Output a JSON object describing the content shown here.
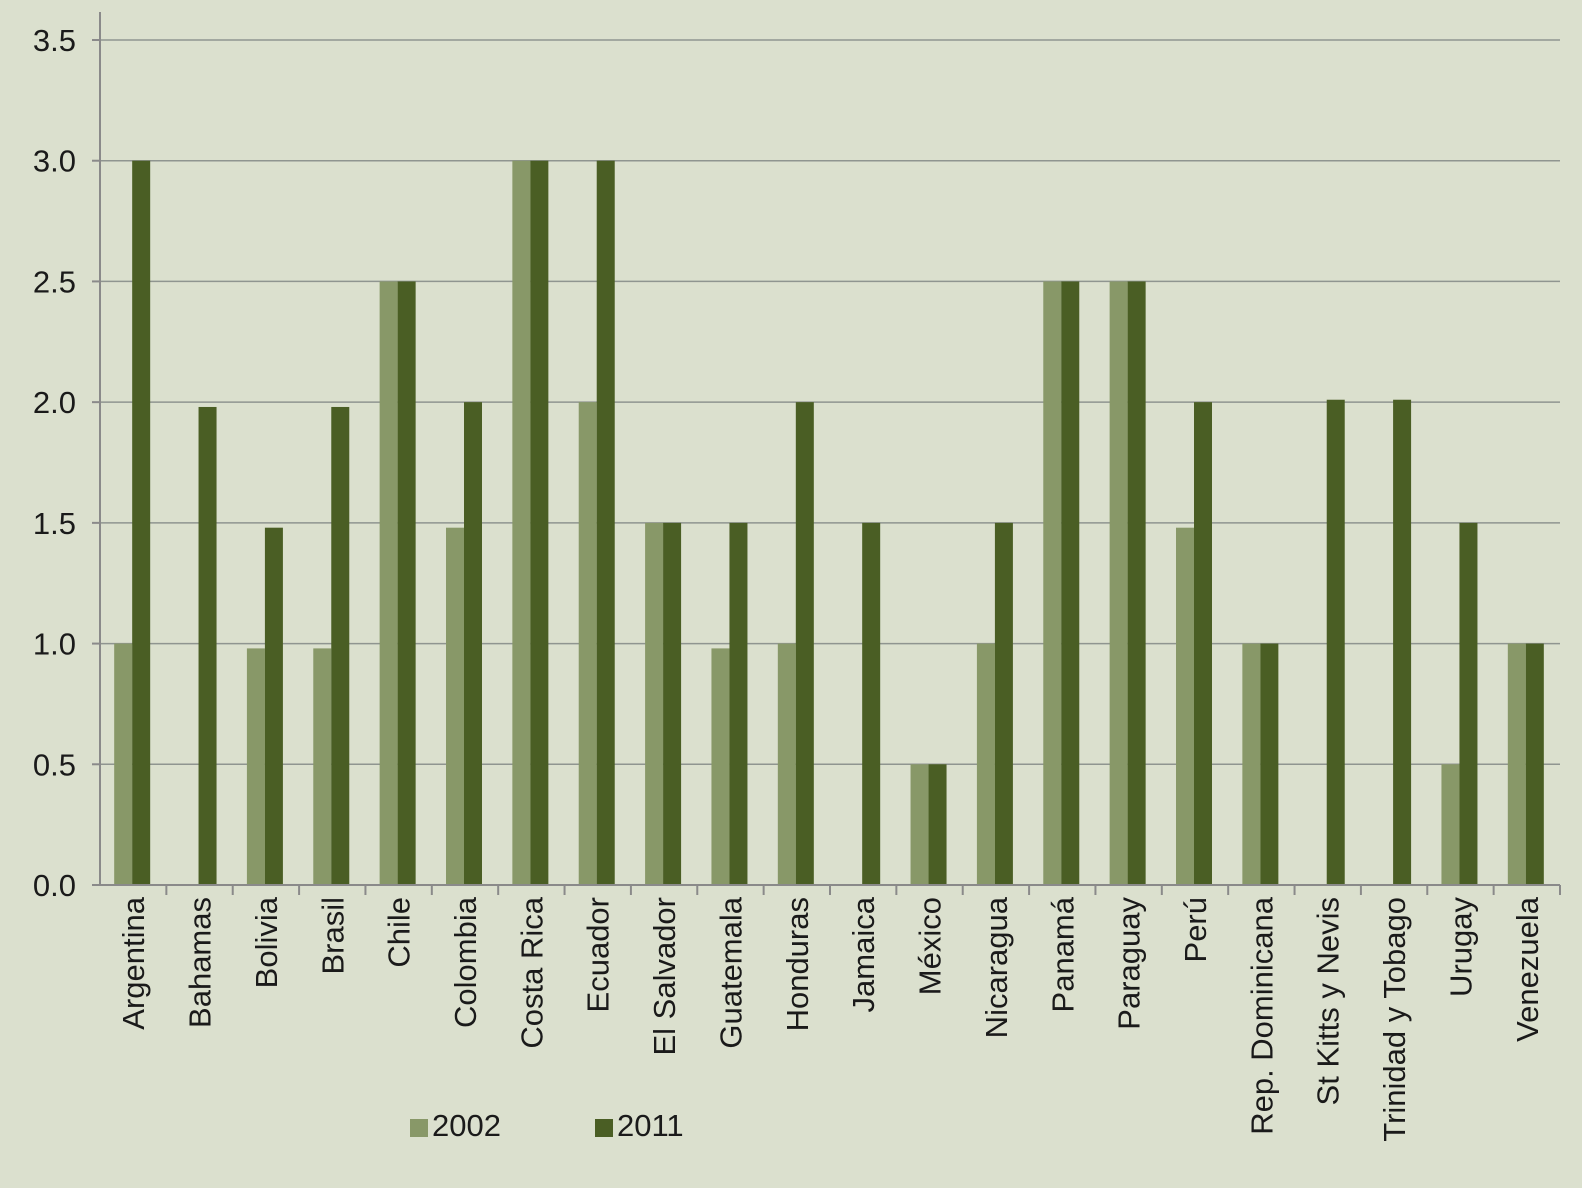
{
  "chart_data": {
    "type": "bar",
    "title": "",
    "xlabel": "",
    "ylabel": "",
    "ylim": [
      0,
      3.5
    ],
    "yticks": [
      "0.0",
      "0.5",
      "1.0",
      "1.5",
      "2.0",
      "2.5",
      "3.0",
      "3.5"
    ],
    "grid": true,
    "legend_position": "bottom",
    "categories": [
      "Argentina",
      "Bahamas",
      "Bolivia",
      "Brasil",
      "Chile",
      "Colombia",
      "Costa Rica",
      "Ecuador",
      "El Salvador",
      "Guatemala",
      "Honduras",
      "Jamaica",
      "México",
      "Nicaragua",
      "Panamá",
      "Paraguay",
      "Perú",
      "Rep. Dominicana",
      "St Kitts y Nevis",
      "Trinidad y Tobago",
      "Urugay",
      "Venezuela"
    ],
    "series": [
      {
        "name": "2002",
        "color": "#889868",
        "values": [
          1.0,
          0,
          0.98,
          0.98,
          2.5,
          1.48,
          3.0,
          2.0,
          1.5,
          0.98,
          1.0,
          0,
          0.5,
          1.0,
          2.5,
          2.5,
          1.48,
          1.0,
          0,
          0,
          0.5,
          1.0
        ]
      },
      {
        "name": "2011",
        "color": "#4a5e24",
        "values": [
          3.0,
          1.98,
          1.48,
          1.98,
          2.5,
          2.0,
          3.0,
          3.0,
          1.5,
          1.5,
          2.0,
          1.5,
          0.5,
          1.5,
          2.5,
          2.5,
          2.0,
          1.0,
          2.01,
          2.01,
          1.5,
          1.0
        ]
      }
    ]
  }
}
